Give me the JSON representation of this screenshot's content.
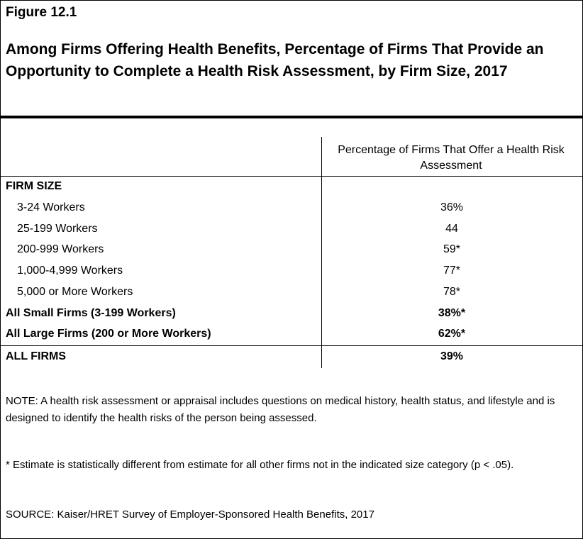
{
  "figure_label": "Figure 12.1",
  "title": "Among Firms Offering Health Benefits, Percentage of Firms That Provide an Opportunity to Complete a Health Risk Assessment, by Firm Size, 2017",
  "column_header": "Percentage of Firms That Offer a Health Risk Assessment",
  "section_header": "FIRM SIZE",
  "chart_data": {
    "type": "table",
    "title": "Among Firms Offering Health Benefits, Percentage of Firms That Provide an Opportunity to Complete a Health Risk Assessment, by Firm Size, 2017",
    "columns": [
      "Percentage of Firms That Offer a Health Risk Assessment"
    ],
    "rows": [
      {
        "label": "3-24 Workers",
        "value": "36%",
        "bold": false,
        "indent": true
      },
      {
        "label": "25-199 Workers",
        "value": "44",
        "bold": false,
        "indent": true
      },
      {
        "label": "200-999 Workers",
        "value": "59*",
        "bold": false,
        "indent": true
      },
      {
        "label": "1,000-4,999 Workers",
        "value": "77*",
        "bold": false,
        "indent": true
      },
      {
        "label": "5,000 or More Workers",
        "value": "78*",
        "bold": false,
        "indent": true
      },
      {
        "label": "All Small Firms (3-199 Workers)",
        "value": "38%*",
        "bold": true,
        "indent": false
      },
      {
        "label": "All Large Firms (200 or More Workers)",
        "value": "62%*",
        "bold": true,
        "indent": false
      },
      {
        "label": "ALL FIRMS",
        "value": "39%",
        "bold": true,
        "indent": false
      }
    ]
  },
  "note": "NOTE: A health risk assessment or appraisal includes questions on medical history, health status, and lifestyle and is designed to identify the health risks of the person being assessed.",
  "footnote": "* Estimate is statistically different from estimate for all other firms not in the indicated size category (p < .05).",
  "source": "SOURCE: Kaiser/HRET Survey of Employer-Sponsored Health Benefits, 2017"
}
